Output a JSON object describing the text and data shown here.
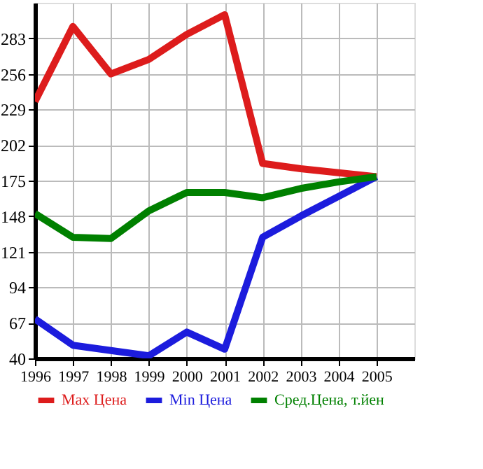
{
  "chart_data": {
    "type": "line",
    "x": [
      1996,
      1997,
      1998,
      1999,
      2000,
      2001,
      2002,
      2003,
      2004,
      2005
    ],
    "series": [
      {
        "name": "Max Цена",
        "color": "#dd1c1c",
        "values": [
          235,
          292,
          256,
          267,
          286,
          301,
          188,
          184,
          181,
          178
        ]
      },
      {
        "name": "Min Цена",
        "color": "#1c1cdd",
        "values": [
          70,
          50,
          46,
          42,
          60,
          47,
          132,
          148,
          163,
          178
        ]
      },
      {
        "name": "Сред.Цена, т.йен",
        "color": "#008000",
        "values": [
          150,
          132,
          131,
          152,
          166,
          166,
          162,
          169,
          174,
          178
        ]
      }
    ],
    "xlim": [
      1996,
      2006
    ],
    "xticks": [
      1996,
      1997,
      1998,
      1999,
      2000,
      2001,
      2002,
      2003,
      2004,
      2005
    ],
    "ylim": [
      40,
      310
    ],
    "yticks": [
      40,
      67,
      94,
      121,
      148,
      175,
      202,
      229,
      256,
      283
    ],
    "grid": true,
    "legend": "bottom",
    "marker": "none",
    "line_style": "solid"
  }
}
